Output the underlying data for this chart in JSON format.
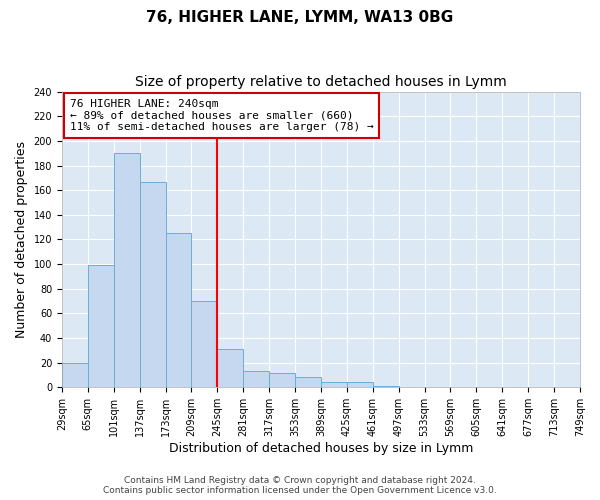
{
  "title": "76, HIGHER LANE, LYMM, WA13 0BG",
  "subtitle": "Size of property relative to detached houses in Lymm",
  "xlabel": "Distribution of detached houses by size in Lymm",
  "ylabel": "Number of detached properties",
  "bar_values": [
    20,
    99,
    190,
    167,
    125,
    70,
    31,
    13,
    12,
    8,
    4,
    4,
    1,
    0,
    0,
    0,
    0,
    0,
    0,
    0
  ],
  "bin_edges": [
    29,
    65,
    101,
    137,
    173,
    209,
    245,
    281,
    317,
    353,
    389,
    425,
    461,
    497,
    533,
    569,
    605,
    641,
    677,
    713,
    749
  ],
  "tick_labels": [
    "29sqm",
    "65sqm",
    "101sqm",
    "137sqm",
    "173sqm",
    "209sqm",
    "245sqm",
    "281sqm",
    "317sqm",
    "353sqm",
    "389sqm",
    "425sqm",
    "461sqm",
    "497sqm",
    "533sqm",
    "569sqm",
    "605sqm",
    "641sqm",
    "677sqm",
    "713sqm",
    "749sqm"
  ],
  "bar_color": "#c5d8ef",
  "bar_edge_color": "#6baed6",
  "plot_bg_color": "#dce9f5",
  "figure_bg_color": "#ffffff",
  "grid_color": "#ffffff",
  "red_line_x": 245,
  "ylim": [
    0,
    240
  ],
  "yticks": [
    0,
    20,
    40,
    60,
    80,
    100,
    120,
    140,
    160,
    180,
    200,
    220,
    240
  ],
  "annotation_line1": "76 HIGHER LANE: 240sqm",
  "annotation_line2": "← 89% of detached houses are smaller (660)",
  "annotation_line3": "11% of semi-detached houses are larger (78) →",
  "annotation_box_color": "#ffffff",
  "annotation_box_edge_color": "#cc0000",
  "footer_line1": "Contains HM Land Registry data © Crown copyright and database right 2024.",
  "footer_line2": "Contains public sector information licensed under the Open Government Licence v3.0.",
  "title_fontsize": 11,
  "subtitle_fontsize": 10,
  "axis_label_fontsize": 9,
  "tick_fontsize": 7,
  "annotation_fontsize": 8,
  "footer_fontsize": 6.5
}
